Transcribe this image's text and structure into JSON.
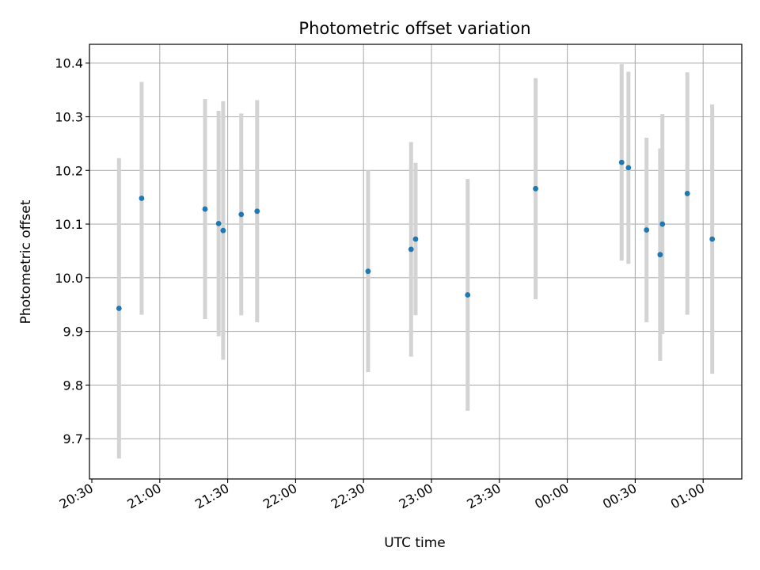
{
  "chart_data": {
    "type": "scatter",
    "title": "Photometric offset variation",
    "xlabel": "UTC time",
    "ylabel": "Photometric offset",
    "x_tick_labels": [
      "20:30",
      "21:00",
      "21:30",
      "22:00",
      "22:30",
      "23:00",
      "23:30",
      "00:00",
      "00:30",
      "01:00"
    ],
    "y_tick_labels": [
      "9.7",
      "9.8",
      "9.9",
      "10.0",
      "10.1",
      "10.2",
      "10.3",
      "10.4"
    ],
    "y_ticks": [
      9.7,
      9.8,
      9.9,
      10.0,
      10.1,
      10.2,
      10.3,
      10.4
    ],
    "ylim": [
      9.625,
      10.435
    ],
    "grid": true,
    "marker_color": "#1f77b4",
    "errorbar_color": "#d3d3d3",
    "points": [
      {
        "time": "20:42",
        "y": 9.943,
        "err": 0.28
      },
      {
        "time": "20:52",
        "y": 10.148,
        "err": 0.217
      },
      {
        "time": "21:20",
        "y": 10.128,
        "err": 0.205
      },
      {
        "time": "21:26",
        "y": 10.101,
        "err": 0.21
      },
      {
        "time": "21:28",
        "y": 10.088,
        "err": 0.241
      },
      {
        "time": "21:36",
        "y": 10.118,
        "err": 0.188
      },
      {
        "time": "21:43",
        "y": 10.124,
        "err": 0.207
      },
      {
        "time": "22:32",
        "y": 10.012,
        "err": 0.188
      },
      {
        "time": "22:51",
        "y": 10.053,
        "err": 0.2
      },
      {
        "time": "22:53",
        "y": 10.072,
        "err": 0.142
      },
      {
        "time": "23:16",
        "y": 9.968,
        "err": 0.216
      },
      {
        "time": "23:46",
        "y": 10.166,
        "err": 0.206
      },
      {
        "time": "00:24",
        "y": 10.215,
        "err": 0.183
      },
      {
        "time": "00:27",
        "y": 10.205,
        "err": 0.179
      },
      {
        "time": "00:35",
        "y": 10.089,
        "err": 0.172
      },
      {
        "time": "00:41",
        "y": 10.043,
        "err": 0.198
      },
      {
        "time": "00:42",
        "y": 10.1,
        "err": 0.205
      },
      {
        "time": "00:53",
        "y": 10.157,
        "err": 0.226
      },
      {
        "time": "01:04",
        "y": 10.072,
        "err": 0.251
      }
    ]
  }
}
